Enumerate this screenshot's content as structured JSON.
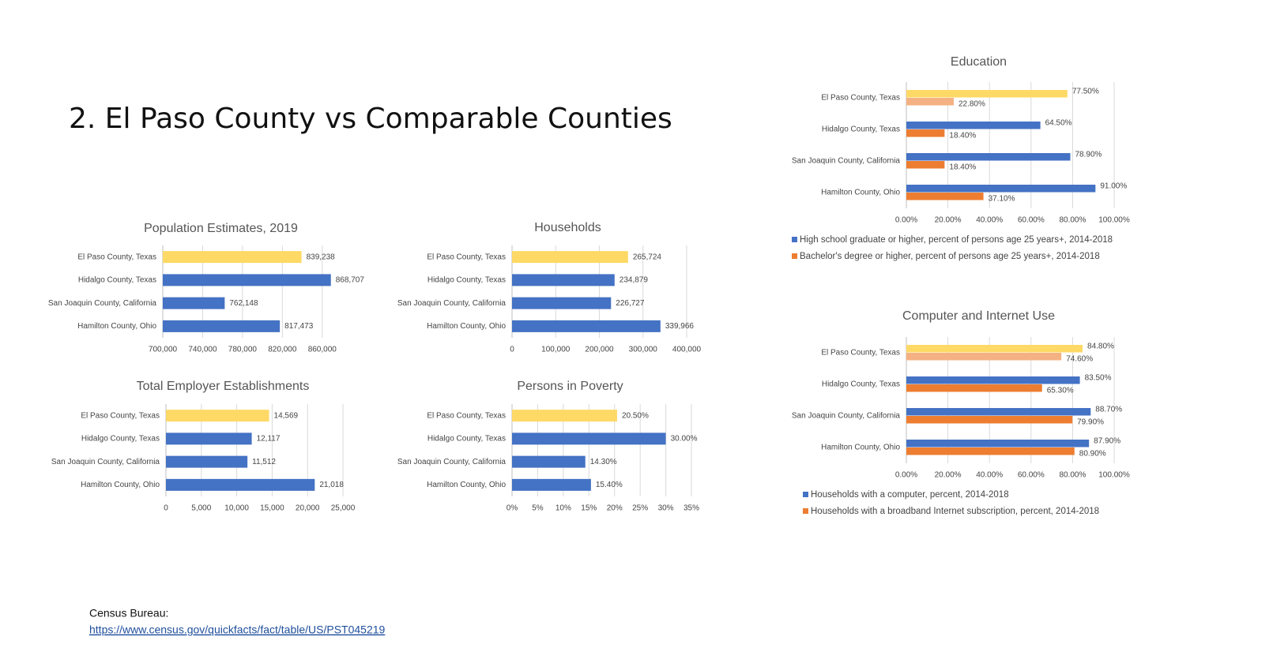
{
  "title": "2. El Paso County vs Comparable Counties",
  "source": {
    "label": "Census Bureau:",
    "link": "https://www.census.gov/quickfacts/fact/table/US/PST045219"
  },
  "chart_data": [
    {
      "type": "bar",
      "title": "Population Estimates, 2019",
      "categories": [
        "El Paso County, Texas",
        "Hidalgo County, Texas",
        "San Joaquin County, California",
        "Hamilton County, Ohio"
      ],
      "series": [
        {
          "colors": [
            "#ffd966",
            "#4472c4",
            "#4472c4",
            "#4472c4"
          ],
          "values": [
            839238,
            868707,
            762148,
            817473
          ],
          "value_labels": [
            "839,238",
            "868,707",
            "762,148",
            "817,473"
          ]
        }
      ],
      "xlim": [
        700000,
        880000
      ],
      "xticks": [
        {
          "value": 700000,
          "label": "700,000"
        },
        {
          "value": 740000,
          "label": "740,000"
        },
        {
          "value": 780000,
          "label": "780,000"
        },
        {
          "value": 820000,
          "label": "820,000"
        },
        {
          "value": 860000,
          "label": "860,000"
        }
      ],
      "grid": true
    },
    {
      "type": "bar",
      "title": "Households",
      "categories": [
        "El Paso County, Texas",
        "Hidalgo County, Texas",
        "San Joaquin County, California",
        "Hamilton County, Ohio"
      ],
      "series": [
        {
          "colors": [
            "#ffd966",
            "#4472c4",
            "#4472c4",
            "#4472c4"
          ],
          "values": [
            265724,
            234879,
            226727,
            339966
          ],
          "value_labels": [
            "265,724",
            "234,879",
            "226,727",
            "339,966"
          ]
        }
      ],
      "xlim": [
        0,
        400000
      ],
      "xticks": [
        0,
        {
          "value": 100000,
          "label": "100,000"
        },
        {
          "value": 200000,
          "label": "200,000"
        },
        {
          "value": 300000,
          "label": "300,000"
        },
        {
          "value": 400000,
          "label": "400,000"
        }
      ],
      "grid": true
    },
    {
      "type": "bar",
      "title": "Total Employer Establishments",
      "categories": [
        "El Paso County, Texas",
        "Hidalgo County, Texas",
        "San Joaquin County, California",
        "Hamilton County, Ohio"
      ],
      "series": [
        {
          "colors": [
            "#ffd966",
            "#4472c4",
            "#4472c4",
            "#4472c4"
          ],
          "values": [
            14569,
            12117,
            11512,
            21018
          ],
          "value_labels": [
            "14,569",
            "12,117",
            "11,512",
            "21,018"
          ]
        }
      ],
      "xlim": [
        0,
        25000
      ],
      "xticks": [
        0,
        {
          "value": 5000,
          "label": "5,000"
        },
        {
          "value": 10000,
          "label": "10,000"
        },
        {
          "value": 15000,
          "label": "15,000"
        },
        {
          "value": 20000,
          "label": "20,000"
        },
        {
          "value": 25000,
          "label": "25,000"
        }
      ],
      "grid": true
    },
    {
      "type": "bar",
      "title": "Persons in Poverty",
      "categories": [
        "El Paso County, Texas",
        "Hidalgo County, Texas",
        "San Joaquin County, California",
        "Hamilton County, Ohio"
      ],
      "series": [
        {
          "colors": [
            "#ffd966",
            "#4472c4",
            "#4472c4",
            "#4472c4"
          ],
          "values": [
            20.5,
            30,
            14.3,
            15.4
          ],
          "value_labels": [
            "20.50%",
            "30.00%",
            "14.30%",
            "15.40%"
          ]
        }
      ],
      "xlim": [
        0,
        35
      ],
      "xticks": [
        {
          "value": 0,
          "label": "0%"
        },
        {
          "value": 5,
          "label": "5%"
        },
        {
          "value": 10,
          "label": "10%"
        },
        {
          "value": 15,
          "label": "15%"
        },
        {
          "value": 20,
          "label": "20%"
        },
        {
          "value": 25,
          "label": "25%"
        },
        {
          "value": 30,
          "label": "30%"
        },
        {
          "value": 35,
          "label": "35%"
        }
      ],
      "grid": true
    },
    {
      "type": "bar",
      "title": "Education",
      "categories": [
        "El Paso County, Texas",
        "Hidalgo County, Texas",
        "San Joaquin County, California",
        "Hamilton County, Ohio"
      ],
      "series": [
        {
          "name": "High school graduate or higher, percent of persons age 25 years+, 2014-2018",
          "color": "#4472c4",
          "colors": [
            "#ffd966",
            "#4472c4",
            "#4472c4",
            "#4472c4"
          ],
          "values": [
            77.5,
            64.5,
            78.9,
            91
          ],
          "value_labels": [
            "77.50%",
            "64.50%",
            "78.90%",
            "91.00%"
          ]
        },
        {
          "name": "Bachelor's degree or higher, percent of persons age 25 years+, 2014-2018",
          "color": "#ed7d31",
          "colors": [
            "#f4b183",
            "#ed7d31",
            "#ed7d31",
            "#ed7d31"
          ],
          "values": [
            22.8,
            18.4,
            18.4,
            37.1
          ],
          "value_labels": [
            "22.80%",
            "18.40%",
            "18.40%",
            "37.10%"
          ]
        }
      ],
      "xlim": [
        0,
        100
      ],
      "xticks": [
        {
          "value": 0,
          "label": "0.00%"
        },
        {
          "value": 20,
          "label": "20.00%"
        },
        {
          "value": 40,
          "label": "40.00%"
        },
        {
          "value": 60,
          "label": "60.00%"
        },
        {
          "value": 80,
          "label": "80.00%"
        },
        {
          "value": 100,
          "label": "100.00%"
        }
      ],
      "grid": true
    },
    {
      "type": "bar",
      "title": "Computer and Internet Use",
      "categories": [
        "El Paso County, Texas",
        "Hidalgo County, Texas",
        "San Joaquin County, California",
        "Hamilton County, Ohio"
      ],
      "series": [
        {
          "name": "Households with a computer, percent, 2014-2018",
          "color": "#4472c4",
          "colors": [
            "#ffd966",
            "#4472c4",
            "#4472c4",
            "#4472c4"
          ],
          "values": [
            84.8,
            83.5,
            88.7,
            87.9
          ],
          "value_labels": [
            "84.80%",
            "83.50%",
            "88.70%",
            "87.90%"
          ]
        },
        {
          "name": "Households with a broadband Internet subscription, percent, 2014-2018",
          "color": "#ed7d31",
          "colors": [
            "#f4b183",
            "#ed7d31",
            "#ed7d31",
            "#ed7d31"
          ],
          "values": [
            74.6,
            65.3,
            79.9,
            80.9
          ],
          "value_labels": [
            "74.60%",
            "65.30%",
            "79.90%",
            "80.90%"
          ]
        }
      ],
      "xlim": [
        0,
        100
      ],
      "xticks": [
        {
          "value": 0,
          "label": "0.00%"
        },
        {
          "value": 20,
          "label": "20.00%"
        },
        {
          "value": 40,
          "label": "40.00%"
        },
        {
          "value": 60,
          "label": "60.00%"
        },
        {
          "value": 80,
          "label": "80.00%"
        },
        {
          "value": 100,
          "label": "100.00%"
        }
      ],
      "grid": true
    }
  ]
}
